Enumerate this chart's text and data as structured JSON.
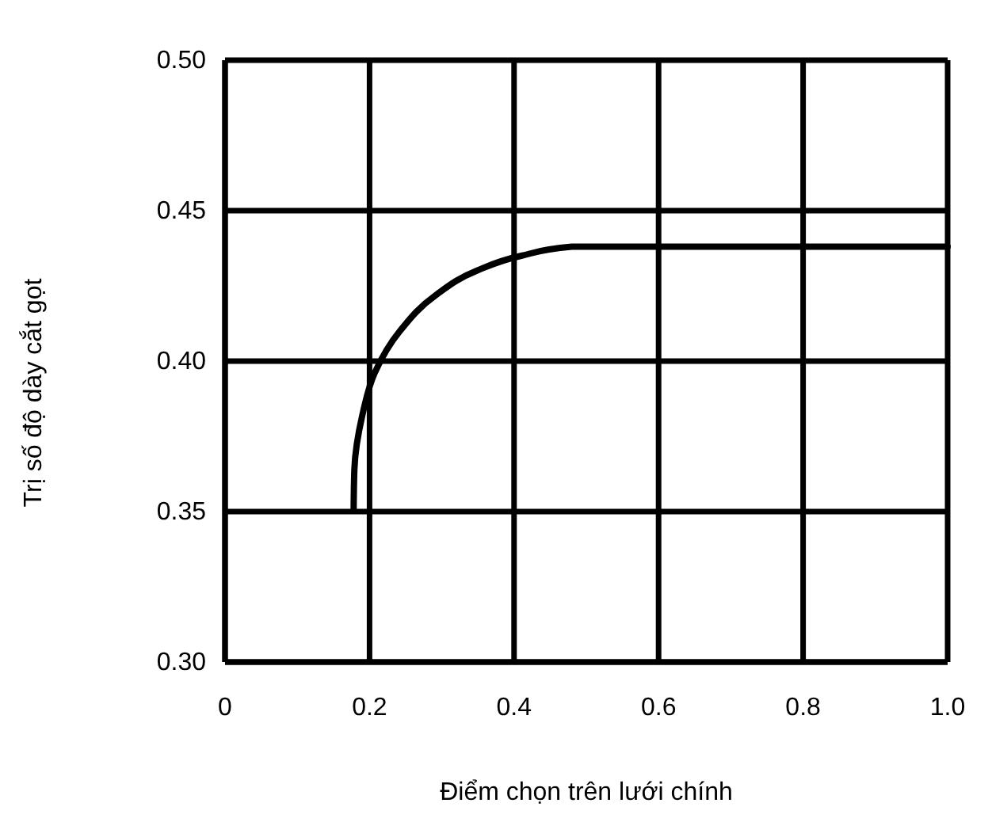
{
  "chart_data": {
    "type": "line",
    "xlabel": "Điểm chọn trên lưới chính",
    "ylabel": "Trị số độ dày cắt gọt",
    "series": [
      {
        "color": "#000000",
        "x": [
          0.178,
          0.179,
          0.19,
          0.207,
          0.242,
          0.292,
          0.348,
          0.41,
          0.48,
          0.52,
          1.0
        ],
        "values": [
          0.351,
          0.364,
          0.382,
          0.396,
          0.41,
          0.422,
          0.43,
          0.435,
          0.438,
          0.438,
          0.438
        ]
      }
    ],
    "xlim": [
      0,
      1.0
    ],
    "xticks": [
      {
        "value": 0,
        "label": "0"
      },
      {
        "value": 0.2,
        "label": "0.2"
      },
      {
        "value": 0.4,
        "label": "0.4"
      },
      {
        "value": 0.6,
        "label": "0.6"
      },
      {
        "value": 0.8,
        "label": "0.8"
      },
      {
        "value": 1.0,
        "label": "1.0"
      }
    ],
    "ylim": [
      0.3,
      0.5
    ],
    "yticks": [
      {
        "value": 0.3,
        "label": "0.30"
      },
      {
        "value": 0.35,
        "label": "0.35"
      },
      {
        "value": 0.4,
        "label": "0.40"
      },
      {
        "value": 0.45,
        "label": "0.45"
      },
      {
        "value": 0.5,
        "label": "0.50"
      }
    ],
    "grid": true,
    "marker": "none",
    "line_style": "solid"
  }
}
